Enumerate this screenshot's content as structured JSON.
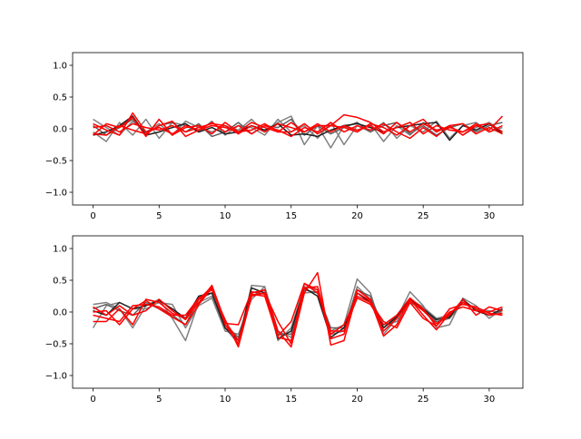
{
  "chart_data": [
    {
      "type": "line",
      "title": "",
      "xlabel": "",
      "ylabel": "",
      "xlim": [
        -1.55,
        32.55
      ],
      "ylim": [
        -1.2,
        1.2
      ],
      "x_ticks": [
        0,
        5,
        10,
        15,
        20,
        25,
        30
      ],
      "y_ticks": [
        -1.0,
        -0.5,
        0.0,
        0.5,
        1.0
      ],
      "x_tick_labels": [
        "0",
        "5",
        "10",
        "15",
        "20",
        "25",
        "30"
      ],
      "y_tick_labels": [
        "−1.0",
        "−0.5",
        "0.0",
        "0.5",
        "1.0"
      ],
      "x": [
        0,
        1,
        2,
        3,
        4,
        5,
        6,
        7,
        8,
        9,
        10,
        11,
        12,
        13,
        14,
        15,
        16,
        17,
        18,
        19,
        20,
        21,
        22,
        23,
        24,
        25,
        26,
        27,
        28,
        29,
        30,
        31
      ],
      "series": [
        {
          "color": "#808080",
          "values": [
            0.15,
            0.02,
            -0.1,
            0.12,
            -0.05,
            0.08,
            -0.1,
            0.12,
            0.02,
            -0.05,
            0.05,
            -0.02,
            0.15,
            -0.05,
            0.1,
            0.2,
            -0.25,
            0.05,
            -0.3,
            0.05,
            -0.05,
            0.08,
            -0.2,
            0.05,
            -0.1,
            0.1,
            -0.05,
            0.05,
            -0.1,
            0.02,
            0.1,
            -0.05
          ]
        },
        {
          "color": "#808080",
          "values": [
            -0.05,
            -0.2,
            0.1,
            -0.1,
            0.15,
            -0.15,
            0.1,
            0.05,
            -0.05,
            0.12,
            -0.1,
            0.05,
            0.02,
            -0.1,
            0.15,
            -0.05,
            0.05,
            -0.15,
            0.1,
            -0.25,
            0.05,
            -0.05,
            0.1,
            -0.15,
            0.05,
            -0.05,
            0.12,
            -0.15,
            0.05,
            0.1,
            -0.05,
            0.02
          ]
        },
        {
          "color": "#606060",
          "values": [
            0.05,
            -0.1,
            0.02,
            0.15,
            -0.08,
            0.05,
            0.1,
            -0.05,
            0.08,
            -0.12,
            -0.05,
            0.1,
            -0.08,
            0.05,
            0.02,
            0.15,
            -0.1,
            0.05,
            -0.08,
            0.02,
            0.1,
            -0.05,
            0.05,
            0.1,
            -0.08,
            0.05,
            -0.1,
            0.02,
            0.08,
            -0.05,
            0.05,
            0.1
          ]
        },
        {
          "color": "#202020",
          "values": [
            -0.1,
            -0.05,
            0.05,
            0.2,
            -0.1,
            -0.05,
            0.02,
            0.08,
            -0.05,
            0.02,
            -0.08,
            -0.05,
            0.05,
            -0.02,
            0.08,
            -0.1,
            -0.08,
            -0.12,
            -0.02,
            0.05,
            0.08,
            0.02,
            -0.05,
            0.02,
            0.05,
            0.08,
            0.1,
            -0.18,
            0.05,
            -0.02,
            0.08,
            -0.08
          ]
        },
        {
          "color": "#ff0000",
          "values": [
            0.08,
            -0.02,
            -0.1,
            0.25,
            -0.05,
            0.02,
            -0.08,
            0.05,
            -0.02,
            0.05,
            0.02,
            -0.05,
            0.1,
            0.02,
            -0.05,
            0.1,
            -0.05,
            0.05,
            0.05,
            0.22,
            0.18,
            0.1,
            -0.05,
            0.02,
            0.1,
            -0.08,
            0.05,
            -0.02,
            -0.05,
            0.05,
            -0.02,
            0.2
          ]
        },
        {
          "color": "#ff0000",
          "values": [
            -0.1,
            0.08,
            0.02,
            0.18,
            -0.12,
            0.15,
            -0.1,
            0.02,
            0.05,
            -0.08,
            0.1,
            -0.05,
            -0.02,
            0.08,
            -0.05,
            -0.05,
            0.08,
            -0.08,
            0.05,
            0.02,
            -0.05,
            0.08,
            0.02,
            -0.1,
            0.05,
            0.15,
            -0.05,
            0.05,
            -0.1,
            0.05,
            0.08,
            -0.05
          ]
        },
        {
          "color": "#ff0000",
          "values": [
            -0.08,
            -0.1,
            0.05,
            -0.02,
            -0.08,
            0.05,
            0.12,
            -0.12,
            -0.02,
            0.1,
            -0.05,
            0.05,
            -0.08,
            0.05,
            -0.02,
            -0.12,
            0.02,
            -0.05,
            0.1,
            -0.05,
            0.05,
            -0.02,
            0.08,
            -0.05,
            -0.15,
            0.02,
            -0.12,
            0.05,
            0.08,
            -0.08,
            0.02,
            -0.08
          ]
        },
        {
          "color": "#ff0000",
          "values": [
            0.02,
            0.05,
            -0.05,
            0.08,
            0.02,
            -0.02,
            0.05,
            -0.05,
            0.02,
            0.08,
            0.05,
            -0.08,
            0.05,
            -0.05,
            0.08,
            0.02,
            -0.05,
            0.08,
            -0.05,
            0.05,
            -0.02,
            0.05,
            -0.08,
            0.1,
            -0.05,
            0.08,
            -0.02,
            0.02,
            -0.05,
            0.08,
            -0.05,
            0.05
          ]
        }
      ]
    },
    {
      "type": "line",
      "title": "",
      "xlabel": "",
      "ylabel": "",
      "xlim": [
        -1.55,
        32.55
      ],
      "ylim": [
        -1.2,
        1.2
      ],
      "x_ticks": [
        0,
        5,
        10,
        15,
        20,
        25,
        30
      ],
      "y_ticks": [
        -1.0,
        -0.5,
        0.0,
        0.5,
        1.0
      ],
      "x_tick_labels": [
        "0",
        "5",
        "10",
        "15",
        "20",
        "25",
        "30"
      ],
      "y_tick_labels": [
        "−1.0",
        "−0.5",
        "0.0",
        "0.5",
        "1.0"
      ],
      "x": [
        0,
        1,
        2,
        3,
        4,
        5,
        6,
        7,
        8,
        9,
        10,
        11,
        12,
        13,
        14,
        15,
        16,
        17,
        18,
        19,
        20,
        21,
        22,
        23,
        24,
        25,
        26,
        27,
        28,
        29,
        30,
        31
      ],
      "series": [
        {
          "color": "#808080",
          "values": [
            0.12,
            0.15,
            0.05,
            -0.25,
            0.1,
            0.2,
            -0.1,
            -0.45,
            0.15,
            0.25,
            -0.25,
            -0.5,
            0.42,
            0.4,
            -0.45,
            -0.25,
            0.4,
            0.35,
            -0.3,
            -0.2,
            0.52,
            0.3,
            -0.35,
            -0.1,
            0.32,
            0.1,
            -0.25,
            -0.2,
            0.22,
            0.1,
            -0.1,
            0.05
          ]
        },
        {
          "color": "#808080",
          "values": [
            -0.25,
            0.1,
            0.15,
            0.05,
            0.05,
            0.15,
            0.12,
            -0.25,
            0.1,
            0.22,
            -0.3,
            -0.35,
            0.2,
            0.4,
            -0.3,
            -0.4,
            0.3,
            0.32,
            -0.35,
            -0.3,
            0.4,
            0.2,
            -0.2,
            -0.15,
            0.2,
            0.08,
            -0.1,
            -0.05,
            0.18,
            0.05,
            0.02,
            -0.02
          ]
        },
        {
          "color": "#606060",
          "values": [
            0.05,
            0.12,
            0.02,
            -0.05,
            0.15,
            0.05,
            -0.05,
            -0.2,
            0.2,
            0.3,
            -0.2,
            -0.4,
            0.25,
            0.35,
            -0.35,
            -0.35,
            0.35,
            0.3,
            -0.25,
            -0.25,
            0.35,
            0.25,
            -0.25,
            -0.05,
            0.15,
            0.05,
            -0.15,
            -0.1,
            0.15,
            0.05,
            -0.05,
            0.02
          ]
        },
        {
          "color": "#202020",
          "values": [
            0.02,
            -0.05,
            0.15,
            0.05,
            0.1,
            0.18,
            0.05,
            -0.1,
            0.25,
            0.3,
            -0.25,
            -0.45,
            0.38,
            0.3,
            -0.42,
            -0.3,
            0.38,
            0.25,
            -0.4,
            -0.25,
            0.3,
            0.15,
            -0.25,
            -0.08,
            0.2,
            0.05,
            -0.12,
            -0.08,
            0.2,
            0.02,
            -0.05,
            0.05
          ]
        },
        {
          "color": "#ff0000",
          "values": [
            -0.05,
            -0.1,
            -0.15,
            0.1,
            0.12,
            0.08,
            -0.05,
            -0.05,
            0.22,
            0.35,
            -0.12,
            -0.55,
            0.25,
            0.3,
            -0.15,
            -0.5,
            0.45,
            0.35,
            -0.42,
            -0.35,
            0.35,
            0.2,
            -0.3,
            -0.1,
            0.18,
            0.02,
            -0.18,
            -0.05,
            0.2,
            -0.05,
            0.08,
            0.02
          ]
        },
        {
          "color": "#ff0000",
          "values": [
            -0.15,
            -0.15,
            0.05,
            -0.2,
            0.2,
            0.15,
            -0.02,
            -0.1,
            0.2,
            0.4,
            -0.2,
            -0.5,
            0.3,
            0.35,
            -0.3,
            -0.55,
            0.3,
            0.62,
            -0.52,
            -0.45,
            0.3,
            0.18,
            -0.38,
            -0.2,
            0.2,
            -0.05,
            -0.28,
            -0.02,
            0.15,
            0.05,
            -0.05,
            -0.02
          ]
        },
        {
          "color": "#ff0000",
          "values": [
            0.0,
            0.02,
            -0.2,
            0.05,
            0.18,
            0.05,
            -0.08,
            -0.2,
            0.12,
            0.38,
            -0.18,
            -0.2,
            0.32,
            0.28,
            -0.38,
            -0.15,
            0.45,
            0.3,
            -0.3,
            -0.3,
            0.22,
            0.12,
            -0.2,
            -0.05,
            0.22,
            0.05,
            -0.22,
            0.05,
            0.12,
            0.08,
            -0.02,
            -0.05
          ]
        },
        {
          "color": "#ff0000",
          "values": [
            0.08,
            -0.05,
            0.1,
            -0.05,
            0.02,
            0.2,
            0.02,
            -0.12,
            0.15,
            0.42,
            -0.15,
            -0.45,
            0.28,
            0.25,
            -0.4,
            -0.45,
            0.38,
            0.4,
            -0.35,
            -0.2,
            0.25,
            0.15,
            -0.15,
            -0.25,
            0.15,
            -0.1,
            -0.22,
            0.0,
            0.08,
            0.02,
            0.0,
            0.08
          ]
        }
      ]
    }
  ]
}
